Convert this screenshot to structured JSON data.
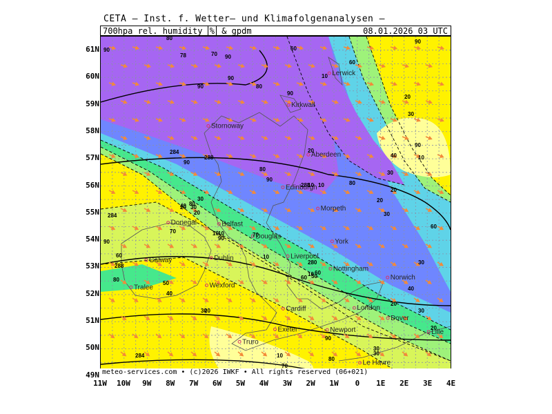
{
  "title": "CETA — Inst. f. Wetter— und Klimafolgenanalysen —",
  "header": {
    "param_prefix": "700hpa_rel._humidity",
    "unit": "%",
    "param_suffix": "& gpdm",
    "valid_time": "08.01.2026 03 UTC"
  },
  "footer": "meteo-services.com • (c)2026 IWKF • All rights reserved (06+021)",
  "axes": {
    "lat_labels": [
      "61N",
      "60N",
      "59N",
      "58N",
      "57N",
      "56N",
      "55N",
      "54N",
      "53N",
      "52N",
      "51N",
      "50N",
      "49N"
    ],
    "lon_labels": [
      "11W",
      "10W",
      "9W",
      "8W",
      "7W",
      "6W",
      "5W",
      "4W",
      "3W",
      "2W",
      "1W",
      "0",
      "1E",
      "2E",
      "3E",
      "4E"
    ]
  },
  "colors": {
    "violet": "#a666f2",
    "blue": "#6f86ff",
    "cyan": "#5fd3e8",
    "green": "#46e88c",
    "lightgreen": "#9ef27a",
    "yellowgreen": "#d8f55a",
    "yellow": "#fff200",
    "paleyellow": "#ffff99",
    "arrow": "#f28a3a",
    "city": "#d6336c"
  },
  "cities": [
    {
      "name": "Lerwick",
      "lon": -1.2,
      "lat": 60.15
    },
    {
      "name": "Kirkwall",
      "lon": -2.95,
      "lat": 58.98
    },
    {
      "name": "Stornoway",
      "lon": -6.39,
      "lat": 58.21
    },
    {
      "name": "Aberdeen",
      "lon": -2.1,
      "lat": 57.15
    },
    {
      "name": "Edinburgh",
      "lon": -3.19,
      "lat": 55.95
    },
    {
      "name": "Douglas",
      "lon": -4.48,
      "lat": 54.15
    },
    {
      "name": "Morpeth",
      "lon": -1.69,
      "lat": 55.17
    },
    {
      "name": "Donegal",
      "lon": -8.11,
      "lat": 54.65
    },
    {
      "name": "Belfast",
      "lon": -5.93,
      "lat": 54.6
    },
    {
      "name": "York",
      "lon": -1.08,
      "lat": 53.96
    },
    {
      "name": "Liverpool",
      "lon": -2.98,
      "lat": 53.41
    },
    {
      "name": "Nottingham",
      "lon": -1.15,
      "lat": 52.95
    },
    {
      "name": "Galway",
      "lon": -9.05,
      "lat": 53.27
    },
    {
      "name": "Dublin",
      "lon": -6.26,
      "lat": 53.35
    },
    {
      "name": "Norwich",
      "lon": 1.3,
      "lat": 52.63
    },
    {
      "name": "Wexford",
      "lon": -6.46,
      "lat": 52.34
    },
    {
      "name": "Tralee",
      "lon": -9.7,
      "lat": 52.27
    },
    {
      "name": "Cardiff",
      "lon": -3.18,
      "lat": 51.48
    },
    {
      "name": "London",
      "lon": -0.13,
      "lat": 51.51
    },
    {
      "name": "Dover",
      "lon": 1.31,
      "lat": 51.13
    },
    {
      "name": "Exeter",
      "lon": -3.53,
      "lat": 50.72
    },
    {
      "name": "Newport",
      "lon": -1.29,
      "lat": 50.7
    },
    {
      "name": "Lille",
      "lon": 3.06,
      "lat": 50.63
    },
    {
      "name": "Truro",
      "lon": -5.05,
      "lat": 50.26
    },
    {
      "name": "Le Havre",
      "lon": 0.11,
      "lat": 49.49
    }
  ],
  "contour_labels": [
    "90",
    "80",
    "78",
    "70",
    "90",
    "90",
    "80",
    "90",
    "60",
    "288",
    "90",
    "80",
    "30",
    "20",
    "10",
    "10",
    "20",
    "80",
    "90",
    "90",
    "70",
    "40",
    "30",
    "20",
    "10",
    "284",
    "90",
    "80",
    "60",
    "50",
    "40",
    "30",
    "20",
    "10",
    "288",
    "10",
    "60",
    "50",
    "40",
    "30",
    "20",
    "20",
    "30",
    "40",
    "288",
    "10",
    "70",
    "80",
    "90",
    "30",
    "10",
    "60",
    "20",
    "70",
    "284",
    "10",
    "30",
    "80",
    "90",
    "30",
    "20",
    "10",
    "60",
    "90",
    "30",
    "284",
    "280",
    "60",
    "90",
    "20",
    "30"
  ]
}
